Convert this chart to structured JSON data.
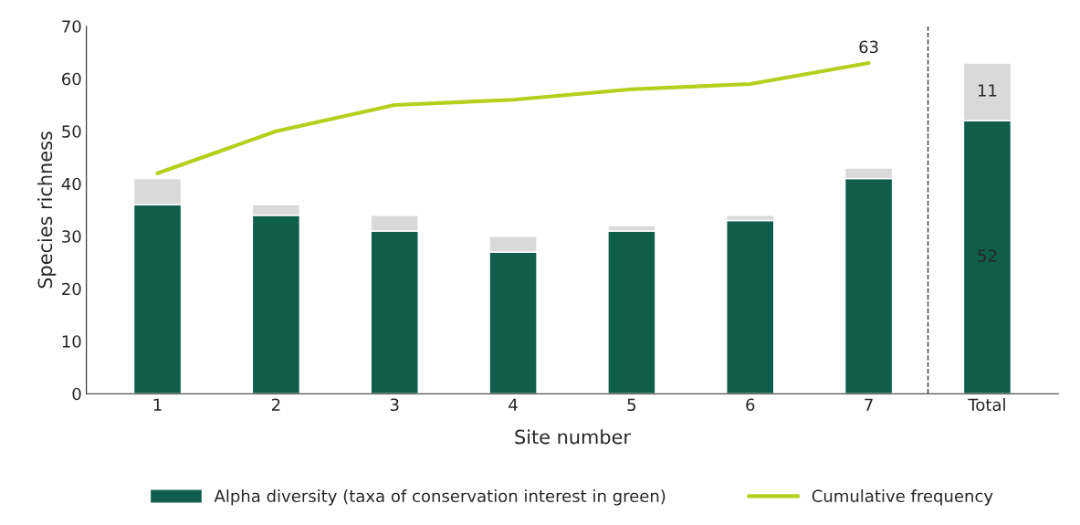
{
  "chart_data": {
    "type": "bar",
    "stacked": true,
    "xlabel": "Site number",
    "ylabel": "Species richness",
    "categories": [
      "1",
      "2",
      "3",
      "4",
      "5",
      "6",
      "7",
      "Total"
    ],
    "series": [
      {
        "name": "Alpha diversity (taxa of conservation interest in green)",
        "color": "#0f5e4c",
        "values": [
          36,
          34,
          31,
          27,
          31,
          33,
          41,
          52
        ],
        "value_labels": [
          null,
          null,
          null,
          null,
          null,
          null,
          null,
          "52"
        ]
      },
      {
        "color": "#d9d9d9",
        "values": [
          5,
          2,
          3,
          3,
          1,
          1,
          2,
          11
        ],
        "value_labels": [
          null,
          null,
          null,
          null,
          null,
          null,
          null,
          "11"
        ]
      },
      {
        "name": "Cumulative frequency",
        "type": "line",
        "color": "#b5cf1c",
        "values": [
          42,
          50,
          55,
          56,
          58,
          59,
          63,
          null
        ],
        "value_labels": [
          null,
          null,
          null,
          null,
          null,
          null,
          "63",
          null
        ]
      }
    ],
    "ylim": [
      0,
      70
    ],
    "yticks": [
      0,
      10,
      20,
      30,
      40,
      50,
      60,
      70
    ],
    "grid": false,
    "legend": "bottom"
  }
}
